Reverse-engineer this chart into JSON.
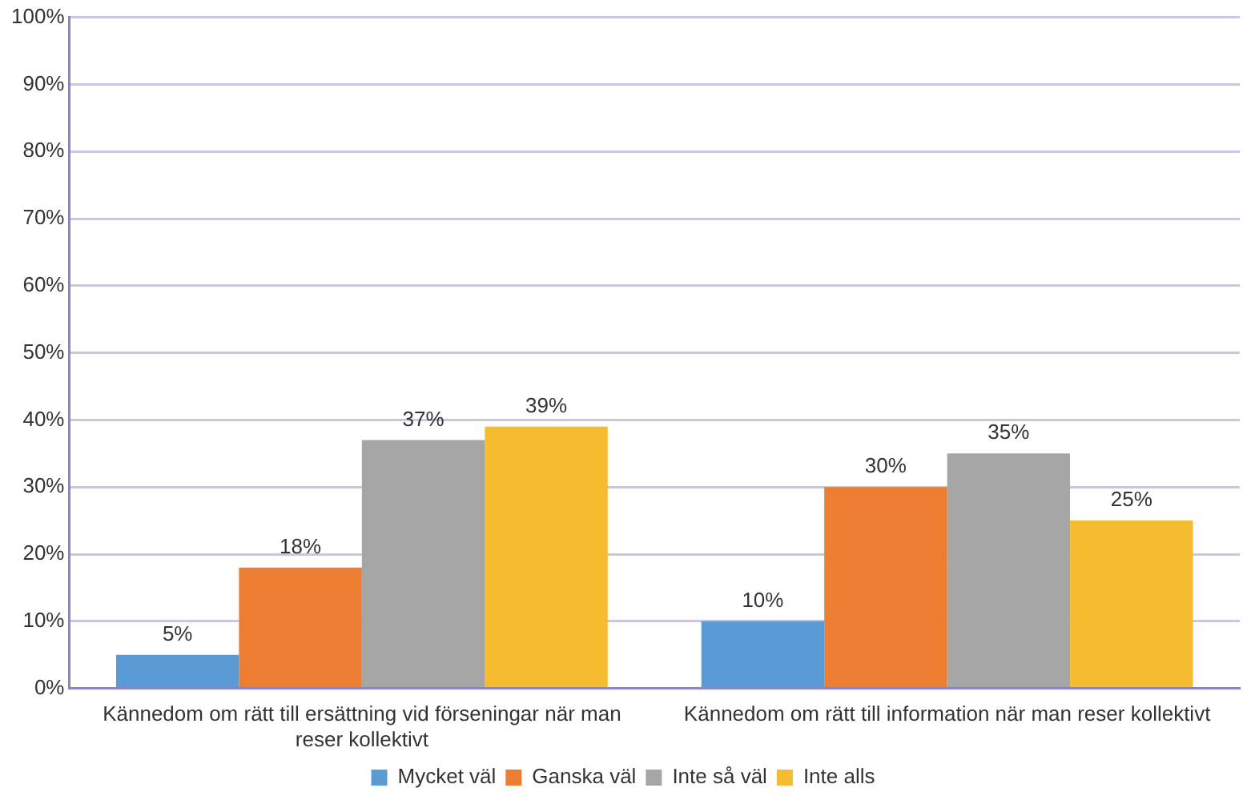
{
  "chart_data": {
    "type": "bar",
    "categories": [
      "Kännedom om rätt till ersättning vid förseningar när man reser kollektivt",
      "Kännedom om rätt till information när man reser kollektivt"
    ],
    "series": [
      {
        "name": "Mycket väl",
        "color": "#5b9bd5",
        "values": [
          5,
          10
        ],
        "value_labels": [
          "5%",
          "10%"
        ]
      },
      {
        "name": "Ganska väl",
        "color": "#ed7d31",
        "values": [
          18,
          30
        ],
        "value_labels": [
          "18%",
          "30%"
        ]
      },
      {
        "name": "Inte så väl",
        "color": "#a5a5a5",
        "values": [
          37,
          35
        ],
        "value_labels": [
          "37%",
          "35%"
        ]
      },
      {
        "name": "Inte alls",
        "color": "#f6bc2f",
        "values": [
          39,
          25
        ],
        "value_labels": [
          "39%",
          "25%"
        ]
      }
    ],
    "ylim": [
      0,
      100
    ],
    "yticks": [
      {
        "value": 0,
        "label": "0%"
      },
      {
        "value": 10,
        "label": "10%"
      },
      {
        "value": 20,
        "label": "20%"
      },
      {
        "value": 30,
        "label": "30%"
      },
      {
        "value": 40,
        "label": "40%"
      },
      {
        "value": 50,
        "label": "50%"
      },
      {
        "value": 60,
        "label": "60%"
      },
      {
        "value": 70,
        "label": "70%"
      },
      {
        "value": 80,
        "label": "80%"
      },
      {
        "value": 90,
        "label": "90%"
      },
      {
        "value": 100,
        "label": "100%"
      }
    ],
    "grid": "y",
    "legend": "bottom"
  }
}
